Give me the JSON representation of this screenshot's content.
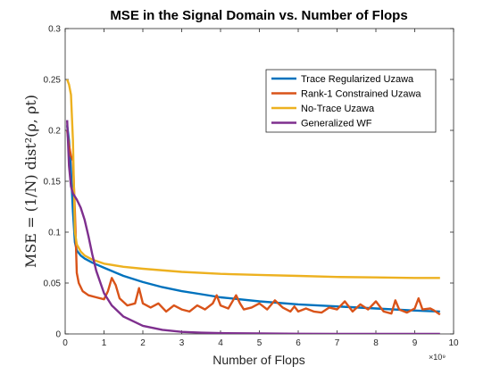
{
  "chart_data": {
    "type": "line",
    "title": "MSE in the Signal Domain vs. Number of Flops",
    "xlabel": "Number of Flops",
    "ylabel": "MSE = (1/N) dist²(ρ, ρt)",
    "x_exponent": "×10⁹",
    "xlim": [
      0,
      10
    ],
    "ylim": [
      0,
      0.3
    ],
    "xticks": [
      "0",
      "1",
      "2",
      "3",
      "4",
      "5",
      "6",
      "7",
      "8",
      "9",
      "10"
    ],
    "yticks": [
      "0",
      "0.05",
      "0.1",
      "0.15",
      "0.2",
      "0.25",
      "0.3"
    ],
    "legend_position": "top-right",
    "grid": false,
    "series": [
      {
        "name": "Trace Regularized Uzawa",
        "color": "#0072BD",
        "x": [
          0.05,
          0.1,
          0.15,
          0.2,
          0.25,
          0.3,
          0.4,
          0.5,
          0.7,
          1.0,
          1.5,
          2.0,
          2.5,
          3.0,
          3.5,
          4.0,
          5.0,
          6.0,
          7.0,
          8.0,
          9.0,
          9.65
        ],
        "y": [
          0.205,
          0.19,
          0.16,
          0.12,
          0.09,
          0.082,
          0.077,
          0.074,
          0.07,
          0.065,
          0.057,
          0.051,
          0.046,
          0.042,
          0.039,
          0.036,
          0.032,
          0.029,
          0.027,
          0.025,
          0.023,
          0.022
        ]
      },
      {
        "name": "Rank-1 Constrained Uzawa",
        "color": "#D95319",
        "x": [
          0.05,
          0.1,
          0.15,
          0.2,
          0.25,
          0.3,
          0.35,
          0.45,
          0.6,
          0.8,
          1.0,
          1.1,
          1.2,
          1.3,
          1.4,
          1.6,
          1.8,
          1.9,
          2.0,
          2.2,
          2.4,
          2.6,
          2.8,
          3.0,
          3.2,
          3.4,
          3.6,
          3.8,
          3.9,
          4.0,
          4.2,
          4.4,
          4.5,
          4.6,
          4.8,
          5.0,
          5.2,
          5.4,
          5.6,
          5.8,
          5.9,
          6.0,
          6.2,
          6.4,
          6.6,
          6.8,
          7.0,
          7.2,
          7.4,
          7.6,
          7.8,
          8.0,
          8.2,
          8.4,
          8.5,
          8.6,
          8.8,
          9.0,
          9.1,
          9.2,
          9.4,
          9.5,
          9.65
        ],
        "y": [
          0.2,
          0.185,
          0.175,
          0.17,
          0.12,
          0.06,
          0.05,
          0.042,
          0.038,
          0.036,
          0.034,
          0.042,
          0.055,
          0.048,
          0.035,
          0.028,
          0.03,
          0.045,
          0.03,
          0.026,
          0.03,
          0.022,
          0.028,
          0.024,
          0.022,
          0.028,
          0.024,
          0.03,
          0.038,
          0.028,
          0.025,
          0.038,
          0.03,
          0.024,
          0.026,
          0.03,
          0.024,
          0.033,
          0.026,
          0.022,
          0.027,
          0.022,
          0.025,
          0.022,
          0.021,
          0.026,
          0.024,
          0.032,
          0.022,
          0.029,
          0.024,
          0.032,
          0.022,
          0.02,
          0.033,
          0.024,
          0.021,
          0.025,
          0.035,
          0.024,
          0.025,
          0.023,
          0.019
        ]
      },
      {
        "name": "No-Trace Uzawa",
        "color": "#EDB120",
        "x": [
          0.05,
          0.1,
          0.15,
          0.2,
          0.25,
          0.3,
          0.4,
          0.5,
          0.7,
          1.0,
          1.5,
          2.0,
          3.0,
          4.0,
          5.0,
          6.0,
          7.0,
          8.0,
          9.0,
          9.65
        ],
        "y": [
          0.25,
          0.245,
          0.235,
          0.19,
          0.1,
          0.088,
          0.081,
          0.077,
          0.073,
          0.069,
          0.066,
          0.064,
          0.061,
          0.059,
          0.058,
          0.057,
          0.056,
          0.0555,
          0.055,
          0.055
        ]
      },
      {
        "name": "Generalized WF",
        "color": "#7E2F8E",
        "x": [
          0.05,
          0.1,
          0.15,
          0.2,
          0.3,
          0.4,
          0.5,
          0.6,
          0.7,
          0.8,
          1.0,
          1.2,
          1.5,
          2.0,
          2.5,
          3.0,
          3.5,
          4.0,
          5.0,
          6.0,
          7.0,
          8.0,
          9.0,
          9.65
        ],
        "y": [
          0.21,
          0.165,
          0.145,
          0.138,
          0.132,
          0.124,
          0.112,
          0.096,
          0.078,
          0.062,
          0.04,
          0.028,
          0.017,
          0.008,
          0.004,
          0.002,
          0.0012,
          0.0008,
          0.0004,
          0.0002,
          0.0001,
          0.0001,
          0.0001,
          0.0001
        ]
      }
    ]
  }
}
